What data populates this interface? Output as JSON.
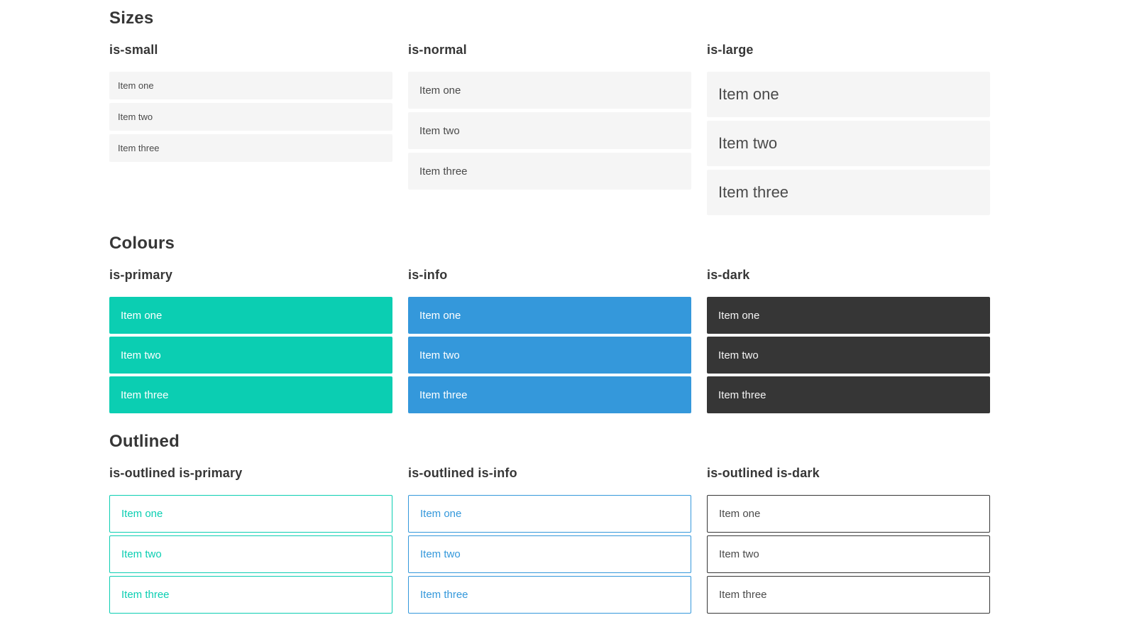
{
  "colors": {
    "primary": "#0bceb2",
    "info": "#3498db",
    "dark": "#363636",
    "light_item_bg": "#f5f5f5",
    "item_text": "#4a4a4a",
    "heading_text": "#363636"
  },
  "sections": [
    {
      "title": "Sizes",
      "groups": [
        {
          "label": "is-small",
          "items": [
            "Item one",
            "Item two",
            "Item three"
          ]
        },
        {
          "label": "is-normal",
          "items": [
            "Item one",
            "Item two",
            "Item three"
          ]
        },
        {
          "label": "is-large",
          "items": [
            "Item one",
            "Item two",
            "Item three"
          ]
        }
      ]
    },
    {
      "title": "Colours",
      "groups": [
        {
          "label": "is-primary",
          "items": [
            "Item one",
            "Item two",
            "Item three"
          ]
        },
        {
          "label": "is-info",
          "items": [
            "Item one",
            "Item two",
            "Item three"
          ]
        },
        {
          "label": "is-dark",
          "items": [
            "Item one",
            "Item two",
            "Item three"
          ]
        }
      ]
    },
    {
      "title": "Outlined",
      "groups": [
        {
          "label": "is-outlined is-primary",
          "items": [
            "Item one",
            "Item two",
            "Item three"
          ]
        },
        {
          "label": "is-outlined is-info",
          "items": [
            "Item one",
            "Item two",
            "Item three"
          ]
        },
        {
          "label": "is-outlined is-dark",
          "items": [
            "Item one",
            "Item two",
            "Item three"
          ]
        }
      ]
    }
  ]
}
